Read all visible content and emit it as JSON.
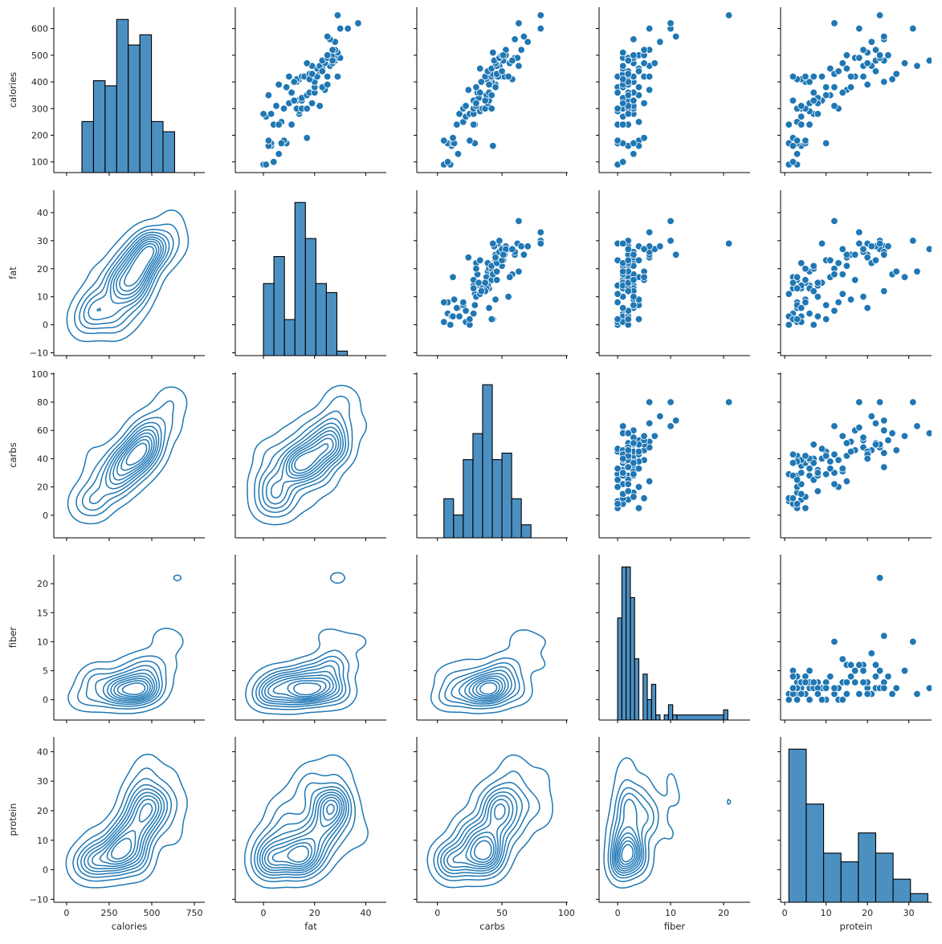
{
  "chart_data": {
    "type": "pairplot",
    "title": "",
    "variables": [
      "calories",
      "fat",
      "carbs",
      "fiber",
      "protein"
    ],
    "diag_kind": "hist",
    "upper_kind": "scatter",
    "lower_kind": "kde",
    "color": "#1f77b4",
    "hist_color": "#4c90c2",
    "axes": {
      "calories": {
        "label": "calories",
        "ticks": [
          0,
          250,
          500,
          750
        ],
        "range": [
          -75,
          811
        ],
        "y_ticks": [
          100,
          200,
          300,
          400,
          500,
          600
        ],
        "y_range": [
          60,
          680
        ]
      },
      "fat": {
        "label": "fat",
        "ticks": [
          0,
          20,
          40
        ],
        "range": [
          -11,
          48
        ],
        "y_ticks": [
          -10,
          0,
          10,
          20,
          30,
          40
        ],
        "y_range": [
          -11,
          48
        ]
      },
      "carbs": {
        "label": "carbs",
        "ticks": [
          0,
          50,
          100
        ],
        "range": [
          -16,
          101
        ],
        "y_ticks": [
          0,
          20,
          40,
          60,
          80,
          100
        ],
        "y_range": [
          -16,
          101
        ]
      },
      "fiber": {
        "label": "fiber",
        "ticks": [
          0,
          10,
          20
        ],
        "range": [
          -3.5,
          25
        ],
        "y_ticks": [
          0,
          5,
          10,
          15,
          20
        ],
        "y_range": [
          -3.5,
          25
        ]
      },
      "protein": {
        "label": "protein",
        "ticks": [
          0,
          10,
          20,
          30
        ],
        "range": [
          -1,
          35.5
        ],
        "y_ticks": [
          -10,
          0,
          10,
          20,
          30,
          40
        ],
        "y_range": [
          -11,
          45
        ]
      }
    },
    "histograms": {
      "calories": {
        "bin_edges": [
          90,
          158,
          226,
          294,
          362,
          430,
          498,
          566,
          634
        ],
        "counts": [
          5,
          9,
          8.5,
          15,
          12.5,
          13.5,
          5,
          4
        ]
      },
      "fat": {
        "bin_edges": [
          0,
          4.1,
          8.2,
          12.3,
          16.4,
          20.5,
          24.6,
          28.7,
          32.8,
          36.9
        ],
        "counts": [
          8,
          11,
          4,
          17,
          13,
          8,
          7,
          0.5
        ]
      },
      "carbs": {
        "bin_edges": [
          5,
          12.5,
          20,
          27.5,
          35,
          42.5,
          50,
          57.5,
          65,
          72.5,
          80
        ],
        "counts": [
          6,
          3.5,
          12,
          16,
          23.5,
          12,
          13,
          6,
          2
        ]
      },
      "fiber": {
        "bin_edges": [
          0,
          0.8,
          1.6,
          2.4,
          3.2,
          4.0,
          4.8,
          5.6,
          6.4,
          7.2,
          8.0,
          8.8,
          9.6,
          10.4,
          11.2,
          20.0,
          20.8
        ],
        "counts": [
          10,
          15,
          15,
          12,
          6,
          0,
          4.5,
          2,
          3.5,
          0.5,
          0,
          0.5,
          1.5,
          0.5,
          0.5,
          1
        ]
      },
      "protein": {
        "bin_edges": [
          1,
          5.2,
          9.4,
          13.6,
          17.8,
          22,
          26.2,
          30.4,
          34.6
        ],
        "counts": [
          26.5,
          17,
          8.5,
          7,
          12,
          8.5,
          4,
          1.5
        ]
      }
    },
    "data": {
      "calories": [
        90,
        90,
        100,
        130,
        160,
        170,
        170,
        170,
        180,
        190,
        240,
        240,
        250,
        270,
        280,
        280,
        290,
        300,
        300,
        300,
        300,
        310,
        320,
        330,
        330,
        340,
        350,
        360,
        360,
        370,
        380,
        380,
        390,
        400,
        400,
        410,
        410,
        420,
        420,
        420,
        420,
        420,
        420,
        430,
        440,
        450,
        450,
        460,
        460,
        470,
        470,
        480,
        480,
        490,
        490,
        490,
        500,
        500,
        510,
        520,
        520,
        550,
        560,
        570,
        600,
        600,
        620,
        650,
        160,
        170,
        180,
        240,
        280,
        300,
        310,
        320,
        330,
        350,
        360,
        380,
        390,
        400,
        410,
        420,
        430,
        440,
        460,
        470,
        480,
        500
      ],
      "fat": [
        0,
        1,
        4,
        6,
        3,
        8,
        3,
        9,
        8,
        17,
        11,
        4,
        7,
        1,
        0,
        14,
        14,
        13,
        16,
        15,
        17,
        22,
        19,
        13,
        15,
        15,
        17,
        18,
        20,
        24,
        23,
        20,
        25,
        20,
        13,
        14,
        13,
        15,
        16,
        21,
        16,
        25,
        29,
        18,
        22,
        23,
        21,
        26,
        22,
        24,
        27,
        28,
        23,
        25,
        29,
        30,
        28,
        27,
        29,
        28,
        27,
        28,
        26,
        25,
        30,
        33,
        37,
        29,
        2,
        7,
        2,
        6,
        3,
        8,
        5,
        10,
        12,
        2,
        11,
        9,
        6,
        12,
        18,
        10,
        19,
        23,
        19,
        17,
        27,
        25
      ],
      "carbs": [
        10,
        5,
        8,
        16,
        11,
        8,
        12,
        13,
        5,
        12,
        29,
        28,
        20,
        22,
        25,
        28,
        33,
        35,
        28,
        37,
        42,
        30,
        39,
        28,
        40,
        32,
        38,
        31,
        40,
        24,
        45,
        30,
        45,
        42,
        40,
        39,
        38,
        37,
        42,
        50,
        46,
        52,
        47,
        43,
        39,
        33,
        42,
        48,
        46,
        45,
        56,
        44,
        51,
        60,
        62,
        48,
        53,
        50,
        43,
        65,
        53,
        70,
        60,
        67,
        80,
        80,
        63,
        80,
        43,
        29,
        25,
        15,
        17,
        20,
        22,
        30,
        37,
        42,
        33,
        45,
        40,
        34,
        58,
        55,
        46,
        50,
        63,
        56,
        58,
        51
      ],
      "fiber": [
        0,
        0,
        1,
        3,
        2,
        0,
        1,
        3,
        4,
        5,
        0,
        2,
        4,
        1,
        2,
        3,
        0,
        3,
        1,
        1,
        2,
        3,
        5,
        1,
        2,
        1,
        4,
        3,
        2,
        6,
        0,
        1,
        2,
        1,
        3,
        1,
        2,
        2,
        3,
        3,
        5,
        6,
        0,
        1,
        2,
        4,
        1,
        6,
        1,
        3,
        7,
        2,
        2,
        3,
        1,
        2,
        4,
        5,
        1,
        6,
        5,
        8,
        3,
        11,
        10,
        6,
        10,
        21,
        4,
        3,
        0,
        1,
        2,
        0,
        2,
        1,
        3,
        2,
        0,
        4,
        1,
        2,
        1,
        3,
        2,
        4,
        1,
        5,
        2,
        3
      ],
      "protein": [
        1,
        3,
        2,
        3,
        4,
        3,
        1,
        5,
        5,
        2,
        1,
        6,
        3,
        4,
        7,
        8,
        6,
        4,
        3,
        5,
        3,
        4,
        6,
        2,
        9,
        8,
        11,
        14,
        7,
        15,
        10,
        12,
        20,
        5,
        6,
        4,
        3,
        2,
        5,
        7,
        17,
        16,
        9,
        12,
        13,
        11,
        15,
        19,
        21,
        20,
        14,
        24,
        22,
        17,
        18,
        23,
        25,
        23,
        20,
        22,
        19,
        21,
        24,
        24,
        31,
        18,
        12,
        23,
        2,
        10,
        3,
        4,
        8,
        13,
        12,
        8,
        7,
        10,
        14,
        16,
        20,
        24,
        26,
        19,
        27,
        22,
        32,
        29,
        35,
        15
      ]
    }
  }
}
